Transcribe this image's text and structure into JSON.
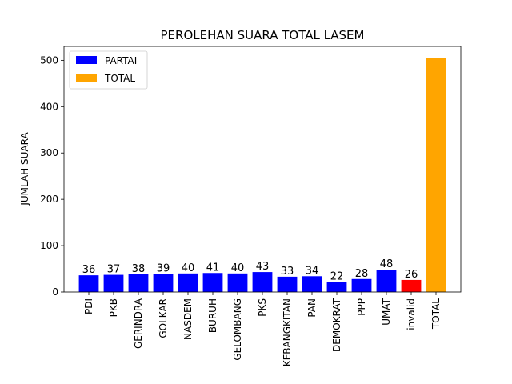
{
  "chart_data": {
    "type": "bar",
    "title": "PEROLEHAN SUARA TOTAL LASEM",
    "xlabel": "",
    "ylabel": "JUMLAH SUARA",
    "ylim": [
      0,
      530
    ],
    "yticks": [
      0,
      100,
      200,
      300,
      400,
      500
    ],
    "grid": false,
    "legend_placement": "top-left",
    "categories": [
      "PDI",
      "PKB",
      "GERINDRA",
      "GOLKAR",
      "NASDEM",
      "BURUH",
      "GELOMBANG",
      "PKS",
      "KEBANGKITAN",
      "PAN",
      "DEMOKRAT",
      "PPP",
      "UMAT",
      "invalid",
      "TOTAL"
    ],
    "values": [
      36,
      37,
      38,
      39,
      40,
      41,
      40,
      43,
      33,
      34,
      22,
      28,
      48,
      26,
      505
    ],
    "bar_colors": [
      "#0000ff",
      "#0000ff",
      "#0000ff",
      "#0000ff",
      "#0000ff",
      "#0000ff",
      "#0000ff",
      "#0000ff",
      "#0000ff",
      "#0000ff",
      "#0000ff",
      "#0000ff",
      "#0000ff",
      "#ff0000",
      "#ffa500"
    ],
    "data_labels": [
      "36",
      "37",
      "38",
      "39",
      "40",
      "41",
      "40",
      "43",
      "33",
      "34",
      "22",
      "28",
      "48",
      "26",
      ""
    ],
    "legend": [
      {
        "name": "PARTAI",
        "color": "#0000ff"
      },
      {
        "name": "TOTAL",
        "color": "#ffa500"
      }
    ]
  }
}
